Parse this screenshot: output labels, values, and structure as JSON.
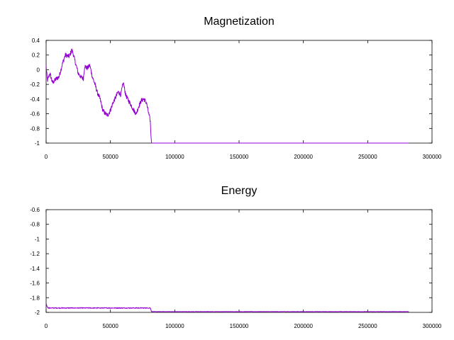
{
  "chart_data": [
    {
      "type": "line",
      "title": "Magnetization",
      "xlabel": "",
      "ylabel": "",
      "xlim": [
        0,
        300000
      ],
      "ylim": [
        -1,
        0.4
      ],
      "x_ticks": [
        "0",
        "50000",
        "100000",
        "150000",
        "200000",
        "250000",
        "300000"
      ],
      "y_ticks": [
        "0.4",
        "0.2",
        "0",
        "-0.2",
        "-0.4",
        "-0.6",
        "-0.8",
        "-1"
      ],
      "grid": false,
      "color": "#9400d3",
      "series": [
        {
          "x": [
            0,
            1000,
            3000,
            5000,
            8000,
            10000,
            13000,
            15000,
            18000,
            20000,
            21000,
            23000,
            25000,
            27000,
            29000,
            30000,
            32000,
            34000,
            36000,
            38000,
            40000,
            42000,
            44000,
            46000,
            48000,
            50000,
            52000,
            54000,
            56000,
            58000,
            60000,
            62000,
            64000,
            66000,
            68000,
            70000,
            72000,
            74000,
            76000,
            78000,
            80000,
            81000,
            81500,
            82000,
            90000,
            100000,
            150000,
            200000,
            250000,
            282000
          ],
          "values": [
            0.05,
            -0.15,
            -0.05,
            -0.18,
            -0.12,
            -0.1,
            0.1,
            0.2,
            0.18,
            0.27,
            0.22,
            0.08,
            -0.05,
            -0.1,
            -0.12,
            0.05,
            0.02,
            0.06,
            -0.1,
            -0.2,
            -0.32,
            -0.4,
            -0.55,
            -0.6,
            -0.62,
            -0.55,
            -0.45,
            -0.38,
            -0.3,
            -0.34,
            -0.18,
            -0.35,
            -0.42,
            -0.48,
            -0.55,
            -0.6,
            -0.5,
            -0.42,
            -0.4,
            -0.45,
            -0.62,
            -0.7,
            -0.9,
            -1,
            -1,
            -1,
            -1,
            -1,
            -1,
            -1
          ]
        }
      ]
    },
    {
      "type": "line",
      "title": "Energy",
      "xlabel": "",
      "ylabel": "",
      "xlim": [
        0,
        300000
      ],
      "ylim": [
        -2,
        -0.6
      ],
      "x_ticks": [
        "0",
        "50000",
        "100000",
        "150000",
        "200000",
        "250000",
        "300000"
      ],
      "y_ticks": [
        "-0.6",
        "-0.8",
        "-1",
        "-1.2",
        "-1.4",
        "-1.6",
        "-1.8",
        "-2"
      ],
      "grid": false,
      "color": "#9400d3",
      "series": [
        {
          "x": [
            0,
            1000,
            2000,
            10000,
            30000,
            50000,
            70000,
            81000,
            82000,
            100000,
            150000,
            200000,
            250000,
            282000
          ],
          "values": [
            -1.88,
            -1.93,
            -1.94,
            -1.94,
            -1.94,
            -1.94,
            -1.94,
            -1.94,
            -1.99,
            -1.99,
            -1.99,
            -1.99,
            -1.99,
            -1.99
          ]
        }
      ]
    }
  ]
}
